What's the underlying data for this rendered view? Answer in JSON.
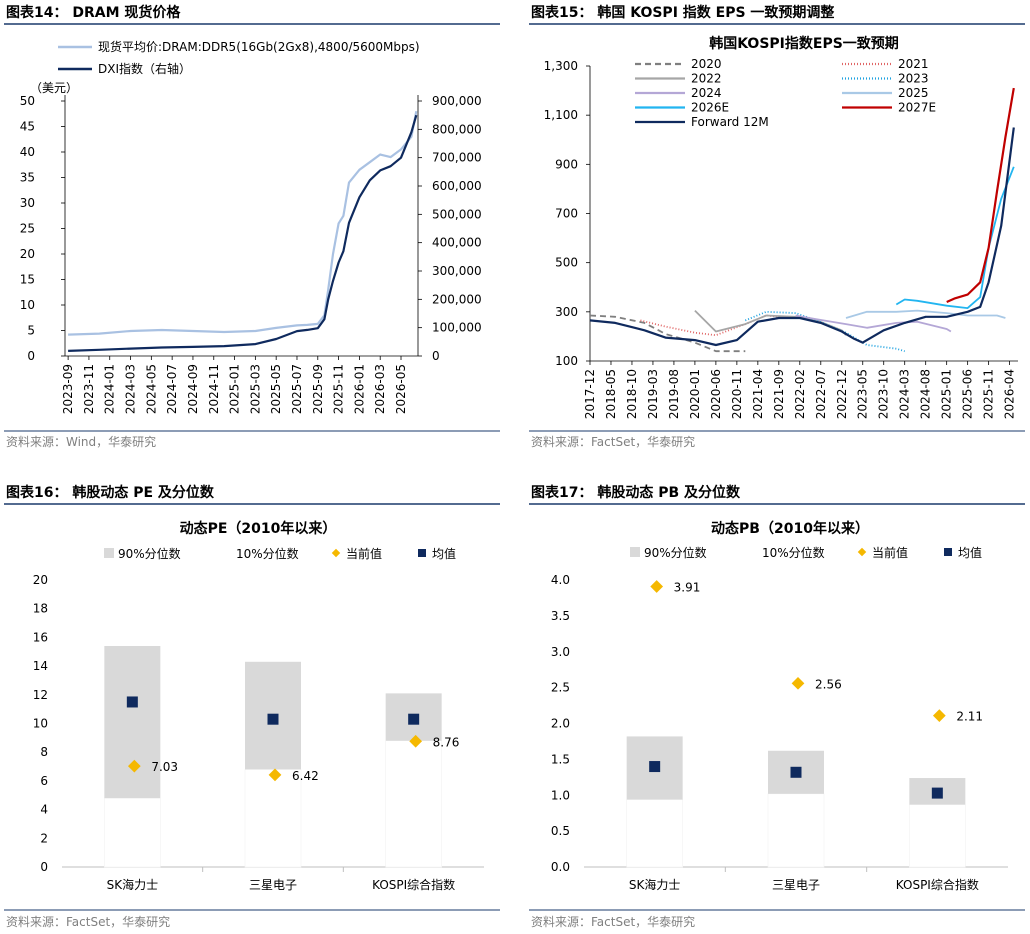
{
  "panels": {
    "p14": {
      "title": "图表14：  DRAM 现货价格",
      "source": "资料来源：Wind，华泰研究"
    },
    "p15": {
      "title": "图表15：  韩国 KOSPI 指数 EPS 一致预期调整",
      "source": "资料来源：FactSet，华泰研究"
    },
    "p16": {
      "title": "图表16：  韩股动态 PE 及分位数",
      "source": "资料来源：FactSet，华泰研究"
    },
    "p17": {
      "title": "图表17：  韩股动态 PB 及分位数",
      "source": "资料来源：FactSet，华泰研究"
    }
  },
  "colors": {
    "navy": "#0f2a5e",
    "lightblue": "#a9c1e2",
    "gold": "#f5b800",
    "band": "#d9d9d9",
    "rule": "#1a3a6b"
  },
  "chart_data": [
    {
      "id": "dram",
      "type": "line",
      "title": "",
      "unit_left": "（美元）",
      "ylim": [
        0,
        50
      ],
      "ylim_right": [
        0,
        900000
      ],
      "y_ticks": [
        "0",
        "5",
        "10",
        "15",
        "20",
        "25",
        "30",
        "35",
        "40",
        "45",
        "50"
      ],
      "y2_ticks": [
        "0",
        "100,000",
        "200,000",
        "300,000",
        "400,000",
        "500,000",
        "600,000",
        "700,000",
        "800,000",
        "900,000"
      ],
      "x_ticks": [
        "2023-09",
        "2023-11",
        "2024-01",
        "2024-03",
        "2024-05",
        "2024-07",
        "2024-09",
        "2024-11",
        "2025-01",
        "2025-03",
        "2025-05",
        "2025-07",
        "2025-09",
        "2025-11",
        "2026-01",
        "2026-03",
        "2026-05"
      ],
      "legend": "top-left",
      "series": [
        {
          "name": "现货平均价:DRAM:DDR5(16Gb(2Gx8),4800/5600Mbps)",
          "axis": "left",
          "color": "#a9c1e2",
          "x": [
            "2023-09",
            "2023-12",
            "2024-03",
            "2024-06",
            "2024-09",
            "2024-12",
            "2025-03",
            "2025-05",
            "2025-07",
            "2025-08",
            "2025-09",
            "2025-09-20",
            "2025-10",
            "2025-10-15",
            "2025-11",
            "2025-11-15",
            "2025-12",
            "2026-01",
            "2026-02",
            "2026-03",
            "2026-04",
            "2026-05",
            "2026-06",
            "2026-06-15"
          ],
          "values": [
            4.2,
            4.4,
            4.9,
            5.1,
            4.9,
            4.7,
            4.9,
            5.5,
            6.0,
            6.1,
            6.3,
            8.0,
            13.0,
            20.0,
            26.0,
            27.5,
            34.0,
            36.5,
            38.0,
            39.5,
            39.0,
            40.5,
            43.0,
            48.0
          ]
        },
        {
          "name": "DXI指数（右轴）",
          "axis": "right",
          "color": "#0f2a5e",
          "x": [
            "2023-09",
            "2023-12",
            "2024-03",
            "2024-06",
            "2024-09",
            "2024-12",
            "2025-03",
            "2025-05",
            "2025-07",
            "2025-08",
            "2025-09",
            "2025-09-20",
            "2025-10",
            "2025-10-15",
            "2025-11",
            "2025-11-15",
            "2025-12",
            "2026-01",
            "2026-02",
            "2026-03",
            "2026-04",
            "2026-05",
            "2026-06",
            "2026-06-15"
          ],
          "values": [
            18000,
            22000,
            26000,
            30000,
            32000,
            35000,
            42000,
            60000,
            88000,
            92000,
            98000,
            130000,
            200000,
            265000,
            330000,
            370000,
            470000,
            560000,
            620000,
            655000,
            670000,
            700000,
            790000,
            850000
          ]
        }
      ]
    },
    {
      "id": "eps",
      "type": "line",
      "title": "韩国KOSPI指数EPS一致预期",
      "ylim": [
        100,
        1300
      ],
      "y_ticks": [
        "100",
        "300",
        "500",
        "700",
        "900",
        "1,100",
        "1,300"
      ],
      "x_ticks": [
        "2017-12",
        "2018-05",
        "2018-10",
        "2019-03",
        "2019-08",
        "2020-01",
        "2020-06",
        "2020-11",
        "2021-04",
        "2021-09",
        "2022-02",
        "2022-07",
        "2022-12",
        "2023-05",
        "2023-10",
        "2024-03",
        "2024-08",
        "2025-01",
        "2025-06",
        "2025-11",
        "2026-04"
      ],
      "legend": "top, two columns",
      "series": [
        {
          "name": "2020",
          "color": "#7f7f7f",
          "dash": "6,4",
          "x": [
            "2017-12",
            "2018-06",
            "2019-01",
            "2019-06",
            "2020-01",
            "2020-06",
            "2021-01"
          ],
          "values": [
            285,
            280,
            255,
            210,
            175,
            140,
            140
          ]
        },
        {
          "name": "2021",
          "color": "#e06666",
          "dash": "1,2",
          "x": [
            "2018-12",
            "2019-06",
            "2020-01",
            "2020-06",
            "2021-01",
            "2021-06",
            "2022-01"
          ],
          "values": [
            265,
            240,
            215,
            205,
            250,
            285,
            275
          ]
        },
        {
          "name": "2022",
          "color": "#a6a6a6",
          "dash": "",
          "x": [
            "2020-01",
            "2020-06",
            "2021-01",
            "2021-06",
            "2022-01",
            "2022-06",
            "2022-12",
            "2023-01"
          ],
          "values": [
            305,
            220,
            250,
            285,
            280,
            265,
            225,
            205
          ]
        },
        {
          "name": "2023",
          "color": "#1fa2e0",
          "dash": "1,2",
          "x": [
            "2021-01",
            "2021-06",
            "2022-01",
            "2022-06",
            "2023-01",
            "2023-06",
            "2024-01",
            "2024-03"
          ],
          "values": [
            265,
            300,
            295,
            265,
            215,
            165,
            150,
            140
          ]
        },
        {
          "name": "2024",
          "color": "#b4a7d6",
          "dash": "",
          "x": [
            "2022-01",
            "2022-06",
            "2023-01",
            "2023-06",
            "2024-01",
            "2024-06",
            "2025-01",
            "2025-02"
          ],
          "values": [
            285,
            270,
            250,
            235,
            255,
            260,
            230,
            220
          ]
        },
        {
          "name": "2025",
          "color": "#a9c9e6",
          "dash": "",
          "x": [
            "2023-01",
            "2023-06",
            "2024-01",
            "2024-06",
            "2025-01",
            "2025-06",
            "2026-01",
            "2026-03"
          ],
          "values": [
            275,
            300,
            300,
            305,
            295,
            285,
            285,
            275
          ]
        },
        {
          "name": "2026E",
          "color": "#22b5f0",
          "dash": "",
          "x": [
            "2024-01",
            "2024-03",
            "2024-06",
            "2025-01",
            "2025-06",
            "2025-09",
            "2025-11",
            "2026-02",
            "2026-05"
          ],
          "values": [
            330,
            350,
            345,
            325,
            315,
            360,
            560,
            760,
            890
          ]
        },
        {
          "name": "2027E",
          "color": "#c00000",
          "dash": "",
          "x": [
            "2025-01",
            "2025-03",
            "2025-06",
            "2025-09",
            "2025-11",
            "2026-01",
            "2026-03",
            "2026-05"
          ],
          "values": [
            340,
            355,
            370,
            420,
            560,
            790,
            1010,
            1210
          ]
        },
        {
          "name": "Forward 12M",
          "color": "#0f2a5e",
          "dash": "",
          "x": [
            "2017-12",
            "2018-06",
            "2019-01",
            "2019-06",
            "2020-01",
            "2020-06",
            "2020-11",
            "2021-04",
            "2021-09",
            "2022-02",
            "2022-07",
            "2022-12",
            "2023-03",
            "2023-05",
            "2023-10",
            "2024-03",
            "2024-08",
            "2025-01",
            "2025-06",
            "2025-09",
            "2025-11",
            "2026-02",
            "2026-05"
          ],
          "values": [
            265,
            255,
            225,
            195,
            185,
            165,
            185,
            260,
            275,
            275,
            255,
            220,
            190,
            175,
            225,
            255,
            280,
            280,
            300,
            320,
            420,
            650,
            1050
          ]
        }
      ]
    },
    {
      "id": "pe",
      "type": "scatter",
      "title": "动态PE（2010年以来）",
      "ylim": [
        0,
        20
      ],
      "y_ticks": [
        "0",
        "2",
        "4",
        "6",
        "8",
        "10",
        "12",
        "14",
        "16",
        "18",
        "20"
      ],
      "legend": [
        "90%分位数",
        "10%分位数",
        "当前值",
        "均值"
      ],
      "categories": [
        "SK海力士",
        "三星电子",
        "KOSPI综合指数"
      ],
      "p90": [
        15.4,
        14.3,
        12.1
      ],
      "p10": [
        4.8,
        6.8,
        8.8
      ],
      "mean": [
        11.5,
        10.3,
        10.3
      ],
      "current": [
        7.03,
        6.42,
        8.76
      ],
      "current_labels": [
        "7.03",
        "6.42",
        "8.76"
      ]
    },
    {
      "id": "pb",
      "type": "scatter",
      "title": "动态PB（2010年以来）",
      "ylim": [
        0,
        4
      ],
      "y_ticks": [
        "0.0",
        "0.5",
        "1.0",
        "1.5",
        "2.0",
        "2.5",
        "3.0",
        "3.5",
        "4.0"
      ],
      "legend": [
        "90%分位数",
        "10%分位数",
        "当前值",
        "均值"
      ],
      "categories": [
        "SK海力士",
        "三星电子",
        "KOSPI综合指数"
      ],
      "p90": [
        1.82,
        1.62,
        1.24
      ],
      "p10": [
        0.94,
        1.02,
        0.87
      ],
      "mean": [
        1.4,
        1.32,
        1.03
      ],
      "current": [
        3.91,
        2.56,
        2.11
      ],
      "current_labels": [
        "3.91",
        "2.56",
        "2.11"
      ]
    }
  ]
}
